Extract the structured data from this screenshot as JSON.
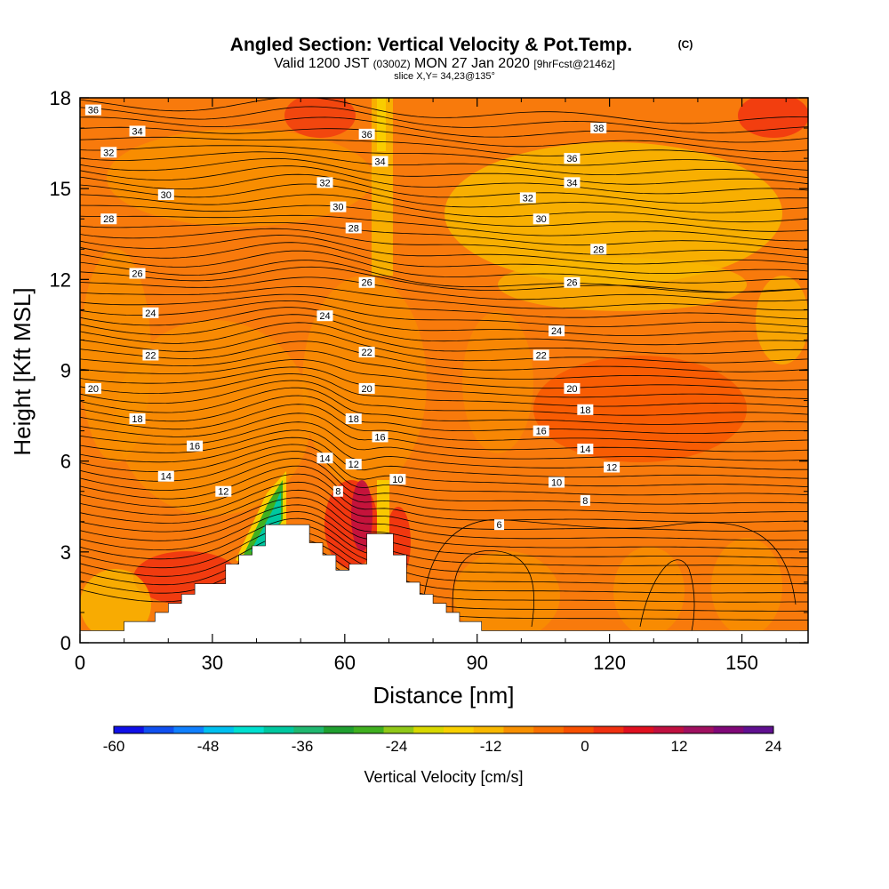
{
  "title": {
    "main": "Angled Section: Vertical Velocity & Pot.Temp.",
    "main_tag": "(C)",
    "valid_prefix": "Valid 1200 JST",
    "valid_z": "(0300Z)",
    "valid_date": "MON 27 Jan 2020",
    "valid_fcst": "[9hrFcst@2146z]",
    "slice": "slice X,Y= 34,23@135°"
  },
  "chart_data": {
    "type": "heatmap",
    "xlabel": "Distance [nm]",
    "ylabel": "Height [Kft MSL]",
    "xlim": [
      0,
      165
    ],
    "ylim": [
      0,
      18
    ],
    "x_ticks": [
      "0",
      "30",
      "60",
      "90",
      "120",
      "150"
    ],
    "y_ticks": [
      "0",
      "3",
      "6",
      "9",
      "12",
      "15",
      "18"
    ],
    "colorbar": {
      "label": "Vertical Velocity [cm/s]",
      "range": [
        -60,
        24
      ],
      "ticks": [
        "-60",
        "-48",
        "-36",
        "-24",
        "-12",
        "0",
        "12",
        "24"
      ],
      "colors": [
        "#1010e8",
        "#1050f0",
        "#1080ff",
        "#00c0f0",
        "#00e0d0",
        "#00c8a0",
        "#20b870",
        "#20a030",
        "#40b020",
        "#90c818",
        "#d8d800",
        "#f8d000",
        "#f8b800",
        "#f89000",
        "#f87000",
        "#f85000",
        "#f03010",
        "#e01020",
        "#c01040",
        "#a01060",
        "#800878",
        "#601090"
      ]
    },
    "terrain": [
      [
        0,
        0.4
      ],
      [
        10,
        0.4
      ],
      [
        10,
        0.7
      ],
      [
        17,
        0.7
      ],
      [
        17,
        1.0
      ],
      [
        20,
        1.0
      ],
      [
        20,
        1.3
      ],
      [
        23,
        1.3
      ],
      [
        23,
        1.6
      ],
      [
        26,
        1.6
      ],
      [
        26,
        1.95
      ],
      [
        33,
        1.95
      ],
      [
        33,
        2.6
      ],
      [
        36,
        2.6
      ],
      [
        36,
        2.9
      ],
      [
        39,
        2.9
      ],
      [
        39,
        3.2
      ],
      [
        42,
        3.2
      ],
      [
        42,
        3.9
      ],
      [
        52,
        3.9
      ],
      [
        52,
        3.3
      ],
      [
        55,
        3.3
      ],
      [
        55,
        2.9
      ],
      [
        58,
        2.9
      ],
      [
        58,
        2.4
      ],
      [
        61,
        2.4
      ],
      [
        61,
        2.6
      ],
      [
        65,
        2.6
      ],
      [
        65,
        3.6
      ],
      [
        71,
        3.6
      ],
      [
        71,
        2.9
      ],
      [
        74,
        2.9
      ],
      [
        74,
        2.0
      ],
      [
        77,
        2.0
      ],
      [
        77,
        1.6
      ],
      [
        80,
        1.6
      ],
      [
        80,
        1.3
      ],
      [
        83,
        1.3
      ],
      [
        83,
        1.0
      ],
      [
        86,
        1.0
      ],
      [
        86,
        0.7
      ],
      [
        91,
        0.7
      ],
      [
        91,
        0.4
      ],
      [
        165,
        0.4
      ]
    ],
    "theta_labels": [
      {
        "x": 3,
        "y": 17.6,
        "t": "36"
      },
      {
        "x": 13,
        "y": 16.9,
        "t": "34"
      },
      {
        "x": 6.5,
        "y": 16.2,
        "t": "32"
      },
      {
        "x": 19.5,
        "y": 14.8,
        "t": "30"
      },
      {
        "x": 6.5,
        "y": 14.0,
        "t": "28"
      },
      {
        "x": 13,
        "y": 12.2,
        "t": "26"
      },
      {
        "x": 16,
        "y": 10.9,
        "t": "24"
      },
      {
        "x": 16,
        "y": 9.5,
        "t": "22"
      },
      {
        "x": 3,
        "y": 8.4,
        "t": "20"
      },
      {
        "x": 13,
        "y": 7.4,
        "t": "18"
      },
      {
        "x": 26,
        "y": 6.5,
        "t": "16"
      },
      {
        "x": 19.5,
        "y": 5.5,
        "t": "14"
      },
      {
        "x": 32.5,
        "y": 5.0,
        "t": "12"
      },
      {
        "x": 65,
        "y": 16.8,
        "t": "36"
      },
      {
        "x": 68,
        "y": 15.9,
        "t": "34"
      },
      {
        "x": 55.5,
        "y": 15.2,
        "t": "32"
      },
      {
        "x": 58.5,
        "y": 14.4,
        "t": "30"
      },
      {
        "x": 62,
        "y": 13.7,
        "t": "28"
      },
      {
        "x": 65,
        "y": 11.9,
        "t": "26"
      },
      {
        "x": 55.5,
        "y": 10.8,
        "t": "24"
      },
      {
        "x": 65,
        "y": 9.6,
        "t": "22"
      },
      {
        "x": 65,
        "y": 8.4,
        "t": "20"
      },
      {
        "x": 62,
        "y": 7.4,
        "t": "18"
      },
      {
        "x": 68,
        "y": 6.8,
        "t": "16"
      },
      {
        "x": 55.5,
        "y": 6.1,
        "t": "14"
      },
      {
        "x": 62,
        "y": 5.9,
        "t": "12"
      },
      {
        "x": 58.5,
        "y": 5.0,
        "t": "8"
      },
      {
        "x": 72,
        "y": 5.4,
        "t": "10"
      },
      {
        "x": 117.5,
        "y": 17.0,
        "t": "38"
      },
      {
        "x": 111.5,
        "y": 16.0,
        "t": "36"
      },
      {
        "x": 111.5,
        "y": 15.2,
        "t": "34"
      },
      {
        "x": 101.5,
        "y": 14.7,
        "t": "32"
      },
      {
        "x": 104.5,
        "y": 14.0,
        "t": "30"
      },
      {
        "x": 117.5,
        "y": 13.0,
        "t": "28"
      },
      {
        "x": 111.5,
        "y": 11.9,
        "t": "26"
      },
      {
        "x": 108,
        "y": 10.3,
        "t": "24"
      },
      {
        "x": 104.5,
        "y": 9.5,
        "t": "22"
      },
      {
        "x": 111.5,
        "y": 8.4,
        "t": "20"
      },
      {
        "x": 114.5,
        "y": 7.7,
        "t": "18"
      },
      {
        "x": 104.5,
        "y": 7.0,
        "t": "16"
      },
      {
        "x": 114.5,
        "y": 6.4,
        "t": "14"
      },
      {
        "x": 120.5,
        "y": 5.8,
        "t": "12"
      },
      {
        "x": 108,
        "y": 5.3,
        "t": "10"
      },
      {
        "x": 114.5,
        "y": 4.7,
        "t": "8"
      },
      {
        "x": 95,
        "y": 3.9,
        "t": "6"
      }
    ]
  }
}
